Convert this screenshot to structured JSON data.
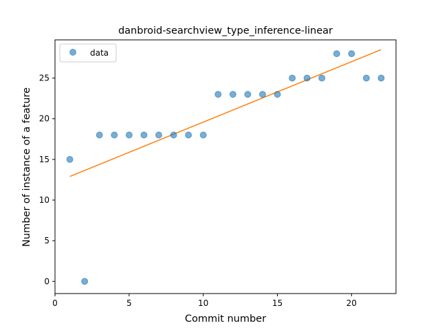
{
  "chart_data": {
    "type": "scatter",
    "title": "danbroid-searchview_type_inference-linear",
    "xlabel": "Commit number",
    "ylabel": "Number of instance of a feature",
    "xlim": [
      0,
      23
    ],
    "ylim": [
      -1.5,
      29.7
    ],
    "xticks": [
      0,
      5,
      10,
      15,
      20
    ],
    "yticks": [
      0,
      5,
      10,
      15,
      20,
      25
    ],
    "grid": false,
    "legend_position": "top-left",
    "series": [
      {
        "name": "data",
        "kind": "scatter",
        "color": "#1f77b4",
        "x": [
          1,
          2,
          3,
          4,
          5,
          6,
          7,
          8,
          9,
          10,
          11,
          12,
          13,
          14,
          15,
          16,
          17,
          18,
          19,
          20,
          21,
          22
        ],
        "y": [
          15,
          0,
          18,
          18,
          18,
          18,
          18,
          18,
          18,
          18,
          23,
          23,
          23,
          23,
          23,
          25,
          25,
          25,
          28,
          28,
          25,
          25
        ]
      },
      {
        "kind": "line",
        "color": "#ff7f0e",
        "x": [
          1,
          22
        ],
        "y": [
          12.9,
          28.5
        ]
      }
    ]
  }
}
